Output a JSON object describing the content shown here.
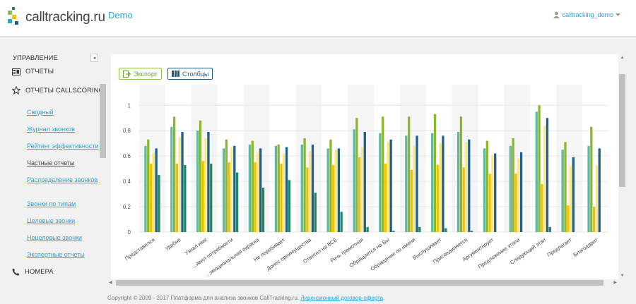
{
  "header": {
    "logo_text": "calltracking.ru",
    "demo_label": "Demo",
    "user_label": "calltracking_demo"
  },
  "sidebar": {
    "section_title": "УПРАВЛЕНИЕ",
    "collapse_glyph": "◂",
    "reports_label": "ОТЧЕТЫ",
    "callscoring_label": "ОТЧЕТЫ CALLSCORING",
    "links": [
      {
        "label": "Сводный"
      },
      {
        "label": "Журнал звонков"
      },
      {
        "label": "Рейтинг эффективности"
      },
      {
        "label": "Частные отчеты"
      },
      {
        "label": "Распределение звонков"
      },
      {
        "label": "Звонки по типам"
      },
      {
        "label": "Целевые звонки"
      },
      {
        "label": "Нецелевые звонки"
      },
      {
        "label": "Экспертные отчеты"
      }
    ],
    "numbers_label": "НОМЕРА"
  },
  "toolbar": {
    "export_label": "Экспорт",
    "columns_label": "Столбцы"
  },
  "chart_data": {
    "type": "bar",
    "ylim": [
      0,
      1
    ],
    "yticks": [
      "0",
      "0.2",
      "0.4",
      "0.6",
      "0.8",
      "1"
    ],
    "categories": [
      "Представился",
      "Удобно",
      "Узнал имя",
      "...явил потребности",
      "...эмоциональная окраска",
      "Не перебивает",
      "Донес преимущества",
      "Ответил на ВСЕ",
      "Речь грамотная",
      "Обращается на Вы",
      "Обращение по имени",
      "Выслушивает",
      "Присоединяется",
      "Аргументирует",
      "Предложение этапа",
      "Следующий этап",
      "Предлагает",
      "Благодарит"
    ],
    "series_colors": [
      "#5fb8a4",
      "#8ab82a",
      "#f2c200",
      "#ffe680",
      "#1f5f8b",
      "#1c8a5e"
    ],
    "series": [
      {
        "values": [
          0.68,
          0.83,
          0.8,
          0.66,
          0.69,
          0.68,
          0.69,
          0.66,
          0.81,
          0.78,
          0.76,
          0.78,
          0.79,
          0.66,
          0.68,
          0.95,
          0.65,
          0.68
        ]
      },
      {
        "values": [
          0.73,
          0.91,
          0.88,
          0.73,
          0.72,
          0.69,
          0.74,
          0.73,
          0.9,
          0.91,
          0.91,
          0.93,
          0.91,
          0.72,
          0.74,
          1.0,
          0.71,
          0.83
        ]
      },
      {
        "values": [
          0.54,
          0.54,
          0.56,
          0.55,
          0.55,
          0.54,
          0.51,
          0.53,
          0.59,
          0.54,
          0.49,
          0.53,
          0.51,
          0.46,
          0.46,
          0.38,
          0.21,
          0.2
        ]
      },
      {
        "values": [
          0.62,
          0.75,
          0.74,
          0.67,
          0.63,
          0.62,
          0.64,
          0.65,
          0.67,
          0.71,
          0.68,
          0.7,
          0.71,
          0.61,
          0.58,
          0.84,
          0.52,
          0.53
        ]
      },
      {
        "values": [
          0.66,
          0.79,
          0.79,
          0.68,
          0.66,
          0.67,
          0.69,
          0.66,
          0.79,
          0.73,
          0.76,
          0.76,
          0.73,
          0.62,
          0.63,
          0.9,
          0.59,
          0.66
        ]
      },
      {
        "values": [
          0.45,
          0.53,
          0.54,
          0.47,
          0.35,
          0.41,
          0.31,
          0.16,
          0.04,
          0.01,
          0.04,
          0.03,
          0.01,
          0.0,
          0.0,
          0.04,
          0.0,
          0.0
        ]
      }
    ]
  },
  "footer": {
    "copyright": "Copyright © 2009 - 2017 Платформа для анализа звонков CallTracking.ru.",
    "license_link": "Лицензионный договор-оферта"
  }
}
